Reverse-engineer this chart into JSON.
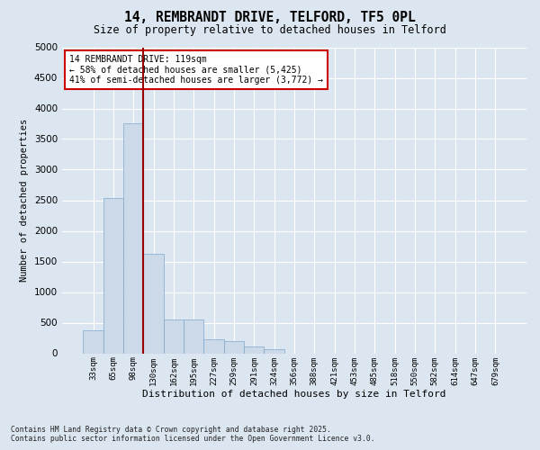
{
  "title_line1": "14, REMBRANDT DRIVE, TELFORD, TF5 0PL",
  "title_line2": "Size of property relative to detached houses in Telford",
  "xlabel": "Distribution of detached houses by size in Telford",
  "ylabel": "Number of detached properties",
  "categories": [
    "33sqm",
    "65sqm",
    "98sqm",
    "130sqm",
    "162sqm",
    "195sqm",
    "227sqm",
    "259sqm",
    "291sqm",
    "324sqm",
    "356sqm",
    "388sqm",
    "421sqm",
    "453sqm",
    "485sqm",
    "518sqm",
    "550sqm",
    "582sqm",
    "614sqm",
    "647sqm",
    "679sqm"
  ],
  "values": [
    380,
    2530,
    3750,
    1620,
    550,
    550,
    230,
    200,
    110,
    65,
    0,
    0,
    0,
    0,
    0,
    0,
    0,
    0,
    0,
    0,
    0
  ],
  "bar_color": "#ccd9e8",
  "bar_edge_color": "#7fa8cc",
  "vline_color": "#990000",
  "annotation_text": "14 REMBRANDT DRIVE: 119sqm\n← 58% of detached houses are smaller (5,425)\n41% of semi-detached houses are larger (3,772) →",
  "annotation_box_color": "#ffffff",
  "annotation_box_edge": "#cc0000",
  "ylim": [
    0,
    5000
  ],
  "yticks": [
    0,
    500,
    1000,
    1500,
    2000,
    2500,
    3000,
    3500,
    4000,
    4500,
    5000
  ],
  "background_color": "#dce6f0",
  "grid_color": "#ffffff",
  "footer_line1": "Contains HM Land Registry data © Crown copyright and database right 2025.",
  "footer_line2": "Contains public sector information licensed under the Open Government Licence v3.0.",
  "figsize": [
    6.0,
    5.0
  ],
  "dpi": 100
}
